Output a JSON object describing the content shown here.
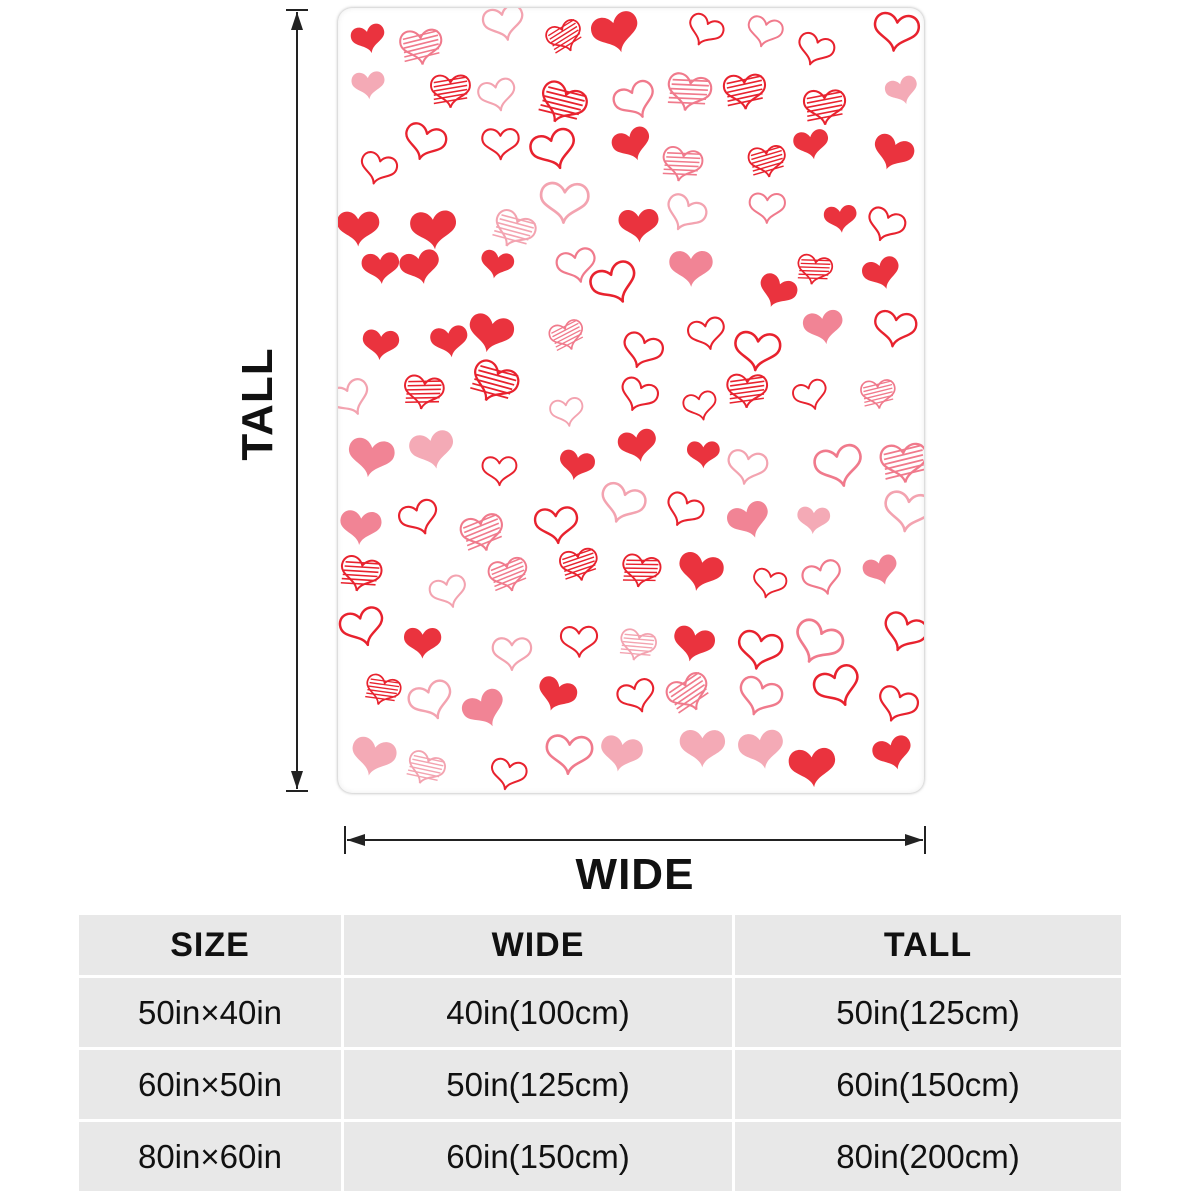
{
  "dimensions": {
    "tall_label": "TALL",
    "wide_label": "WIDE"
  },
  "blanket": {
    "pattern": "scattered hearts",
    "colors": {
      "red": "#e8222e",
      "pink": "#f07a8c",
      "light_pink": "#f3a3b0",
      "background": "#ffffff"
    }
  },
  "size_table": {
    "headers": [
      "SIZE",
      "WIDE",
      "TALL"
    ],
    "rows": [
      [
        "50in×40in",
        "40in(100cm)",
        "50in(125cm)"
      ],
      [
        "60in×50in",
        "50in(125cm)",
        "60in(150cm)"
      ],
      [
        "80in×60in",
        "60in(150cm)",
        "80in(200cm)"
      ]
    ]
  }
}
